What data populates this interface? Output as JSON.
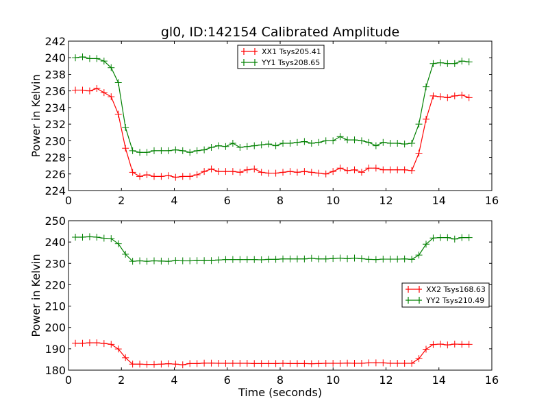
{
  "chart_data": [
    {
      "type": "line",
      "title": "gl0, ID:142154 Calibrated Amplitude",
      "xlabel": "",
      "ylabel": "Power in Kelvin",
      "xlim": [
        0,
        16
      ],
      "ylim": [
        224,
        242
      ],
      "xticks": [
        0,
        2,
        4,
        6,
        8,
        10,
        12,
        14,
        16
      ],
      "yticks": [
        224,
        226,
        228,
        230,
        232,
        234,
        236,
        238,
        240,
        242
      ],
      "legend_position": "upper-center",
      "x_start": 0.26,
      "x_step": 0.2705,
      "series": [
        {
          "name": "XX1 Tsys205.41",
          "color": "#ff0000",
          "values": [
            236.1,
            236.1,
            236.0,
            236.3,
            235.8,
            235.3,
            233.2,
            229.1,
            226.2,
            225.7,
            225.9,
            225.7,
            225.7,
            225.8,
            225.6,
            225.7,
            225.7,
            225.9,
            226.3,
            226.6,
            226.3,
            226.3,
            226.3,
            226.2,
            226.5,
            226.6,
            226.2,
            226.1,
            226.1,
            226.2,
            226.3,
            226.2,
            226.3,
            226.2,
            226.1,
            226.0,
            226.3,
            226.7,
            226.4,
            226.5,
            226.2,
            226.7,
            226.7,
            226.5,
            226.5,
            226.5,
            226.5,
            226.4,
            228.5,
            232.6,
            235.4,
            235.3,
            235.2,
            235.4,
            235.5,
            235.2
          ]
        },
        {
          "name": "YY1 Tsys208.65",
          "color": "#008000",
          "values": [
            240.0,
            240.1,
            239.9,
            239.9,
            239.6,
            238.8,
            237.0,
            231.6,
            228.8,
            228.6,
            228.6,
            228.8,
            228.8,
            228.8,
            228.9,
            228.8,
            228.6,
            228.8,
            228.9,
            229.2,
            229.4,
            229.3,
            229.7,
            229.2,
            229.3,
            229.4,
            229.5,
            229.6,
            229.4,
            229.7,
            229.7,
            229.8,
            229.9,
            229.7,
            229.8,
            230.0,
            230.0,
            230.5,
            230.1,
            230.1,
            230.0,
            229.8,
            229.4,
            229.8,
            229.7,
            229.7,
            229.6,
            229.7,
            232.0,
            236.5,
            239.3,
            239.4,
            239.3,
            239.3,
            239.6,
            239.5
          ]
        }
      ]
    },
    {
      "type": "line",
      "title": "",
      "xlabel": "Time (seconds)",
      "ylabel": "Power in Kelvin",
      "xlim": [
        0,
        16
      ],
      "ylim": [
        180,
        250
      ],
      "xticks": [
        0,
        2,
        4,
        6,
        8,
        10,
        12,
        14,
        16
      ],
      "yticks": [
        180,
        190,
        200,
        210,
        220,
        230,
        240,
        250
      ],
      "legend_position": "center-right",
      "x_start": 0.26,
      "x_step": 0.2705,
      "series": [
        {
          "name": "XX2 Tsys168.63",
          "color": "#ff0000",
          "values": [
            192.6,
            192.6,
            192.8,
            192.8,
            192.5,
            192.1,
            189.9,
            185.8,
            182.8,
            182.8,
            182.7,
            182.7,
            182.8,
            183.0,
            182.8,
            182.5,
            183.1,
            183.1,
            183.3,
            183.3,
            183.2,
            183.2,
            183.2,
            183.2,
            183.2,
            183.1,
            183.1,
            183.1,
            183.1,
            183.2,
            183.1,
            183.1,
            183.1,
            183.0,
            183.1,
            183.2,
            183.2,
            183.2,
            183.3,
            183.2,
            183.2,
            183.4,
            183.4,
            183.4,
            183.2,
            183.2,
            183.2,
            183.2,
            185.4,
            189.8,
            192.0,
            192.2,
            191.8,
            192.2,
            192.1,
            192.1
          ]
        },
        {
          "name": "YY2 Tsys210.49",
          "color": "#008000",
          "values": [
            242.3,
            242.3,
            242.5,
            242.3,
            241.8,
            241.6,
            239.2,
            234.3,
            231.0,
            231.2,
            231.0,
            231.2,
            231.1,
            231.0,
            231.3,
            231.2,
            231.2,
            231.3,
            231.3,
            231.3,
            231.6,
            231.8,
            231.8,
            231.8,
            231.8,
            231.8,
            231.7,
            231.9,
            231.9,
            232.1,
            232.1,
            232.1,
            232.1,
            232.4,
            232.1,
            232.1,
            232.3,
            232.5,
            232.2,
            232.5,
            232.2,
            231.9,
            231.8,
            232.0,
            232.0,
            232.0,
            232.1,
            231.9,
            233.9,
            239.0,
            241.9,
            242.1,
            242.1,
            241.4,
            242.1,
            242.1
          ]
        }
      ]
    }
  ]
}
